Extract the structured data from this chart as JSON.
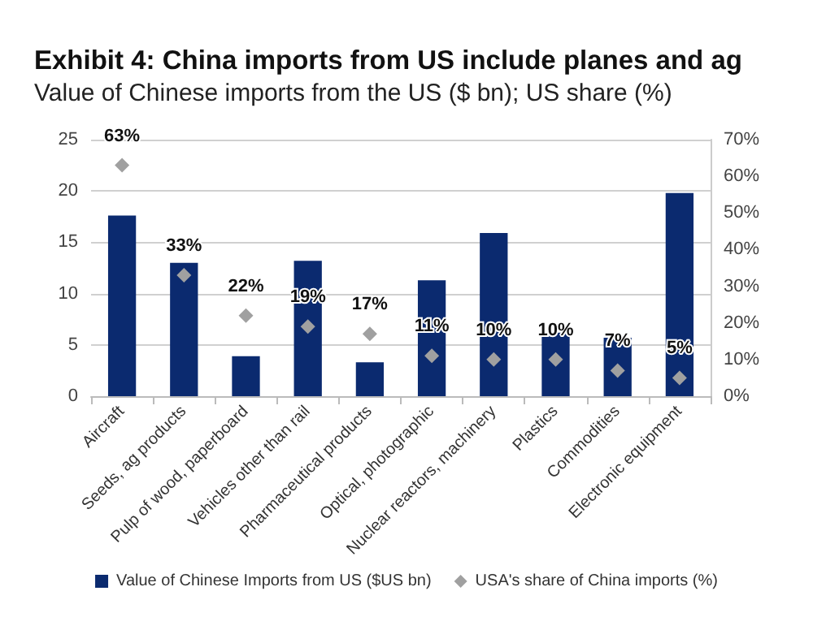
{
  "chart_data": {
    "type": "bar",
    "title": "Exhibit 4: China imports from US include planes and ag",
    "subtitle": "Value of Chinese imports from the US ($ bn); US share (%)",
    "categories": [
      "Aircraft",
      "Seeds, ag products",
      "Pulp of wood, paperboard",
      "Vehicles other than rail",
      "Pharmaceutical products",
      "Optical, photographic",
      "Nuclear reactors, machinery",
      "Plastics",
      "Commodities",
      "Electronic equipment"
    ],
    "series": [
      {
        "name": "Value of Chinese Imports from US ($US bn)",
        "color": "#0b2a6f",
        "values": [
          17.6,
          13.0,
          3.9,
          13.2,
          3.3,
          11.3,
          15.9,
          6.2,
          5.7,
          19.8
        ]
      },
      {
        "name": "USA's share of China imports (%)",
        "type": "scatter",
        "axis": "y2",
        "color": "#a0a0a0",
        "marker": "diamond",
        "x": [
          "Aircraft",
          "Seeds, ag products",
          "Pulp of wood, paperboard",
          "Vehicles other than rail",
          "Pharmaceutical products",
          "Optical, photographic",
          "Nuclear reactors, machinery",
          "Plastics",
          "Commodities",
          "Electronic equipment"
        ],
        "values": [
          63,
          33,
          22,
          19,
          17,
          11,
          10,
          10,
          7,
          5
        ],
        "value_labels": [
          "63%",
          "33%",
          "22%",
          "19%",
          "17%",
          "11%",
          "10%",
          "10%",
          "7%",
          "5%"
        ]
      }
    ],
    "ylim": [
      0,
      25
    ],
    "yticks": [
      0,
      5,
      10,
      15,
      20,
      25
    ],
    "y2lim": [
      0,
      70
    ],
    "y2ticks": [
      {
        "value": 0,
        "label": "0%"
      },
      {
        "value": 10,
        "label": "10%"
      },
      {
        "value": 20,
        "label": "20%"
      },
      {
        "value": 30,
        "label": "30%"
      },
      {
        "value": 40,
        "label": "40%"
      },
      {
        "value": 50,
        "label": "50%"
      },
      {
        "value": 60,
        "label": "60%"
      },
      {
        "value": 70,
        "label": "70%"
      }
    ],
    "grid": "y",
    "legend": "bottom"
  }
}
